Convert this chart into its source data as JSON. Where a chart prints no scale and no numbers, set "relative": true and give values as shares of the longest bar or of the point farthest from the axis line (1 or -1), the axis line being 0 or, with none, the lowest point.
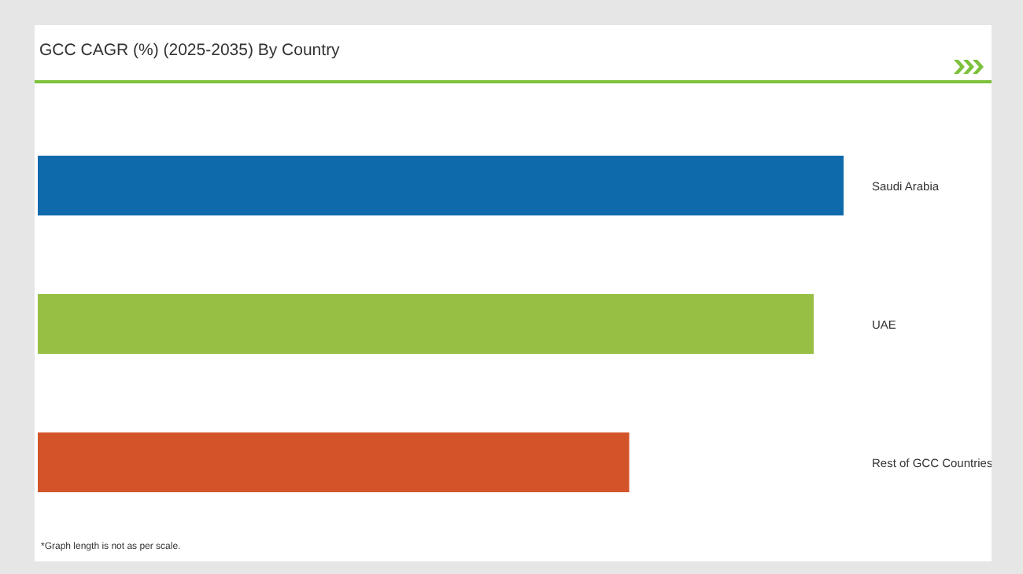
{
  "chart_data": {
    "type": "bar",
    "orientation": "horizontal",
    "relative": true,
    "title": "GCC CAGR (%) (2025-2035) By Country",
    "categories": [
      "Saudi Arabia",
      "UAE",
      "Rest of GCC Countries"
    ],
    "values": [
      1,
      0.963,
      0.734
    ],
    "colors": [
      "#0e6aab",
      "#97bf44",
      "#d4542a"
    ],
    "annotations": [
      "*Graph length is not as per scale."
    ],
    "grid": false,
    "legend": false
  }
}
